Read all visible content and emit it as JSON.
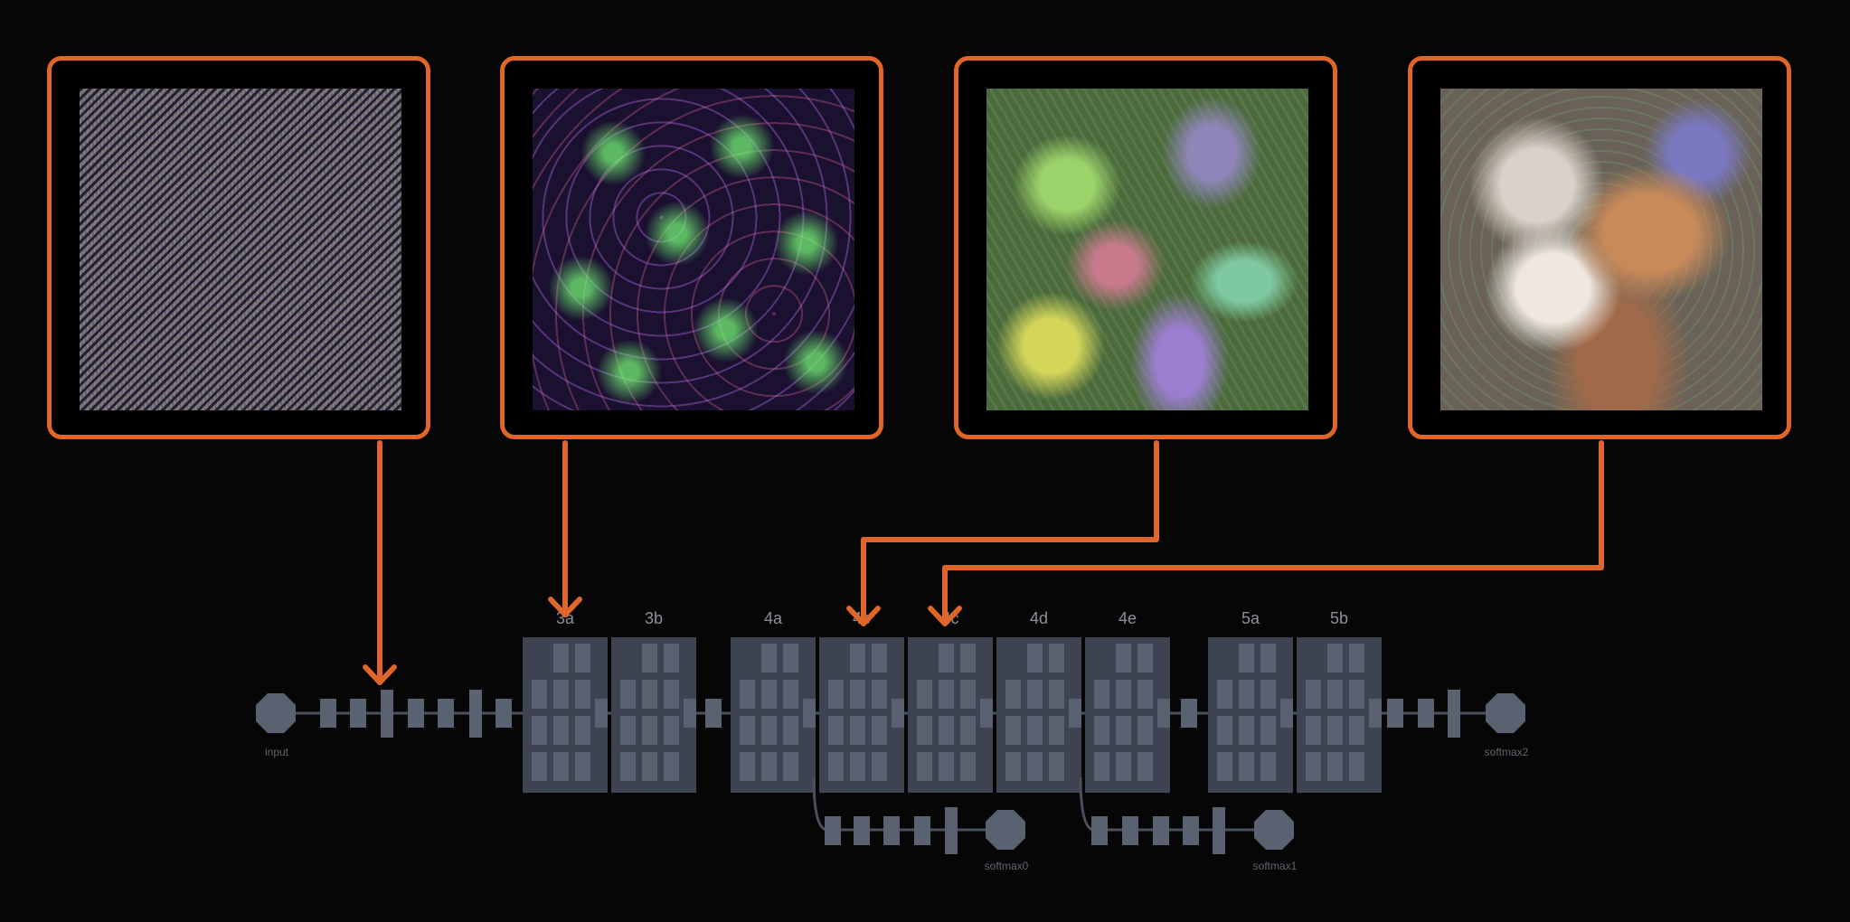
{
  "panels": [
    {
      "id": "noise",
      "target_layer": "conv2d0"
    },
    {
      "id": "neuron-web",
      "target_layer": "3a"
    },
    {
      "id": "rope-texture",
      "target_layer": "4b"
    },
    {
      "id": "dogs",
      "target_layer": "4c"
    }
  ],
  "network": {
    "input_label": "input",
    "output_label": "softmax2",
    "aux_labels": [
      "softmax0",
      "softmax1"
    ],
    "inception_labels": [
      "3a",
      "3b",
      "4a",
      "4b",
      "4c",
      "4d",
      "4e",
      "5a",
      "5b"
    ]
  },
  "colors": {
    "accent": "#e0652a",
    "block": "#5a6170",
    "module_bg": "#3d4350",
    "label": "#8c8f99",
    "background": "#060606"
  }
}
